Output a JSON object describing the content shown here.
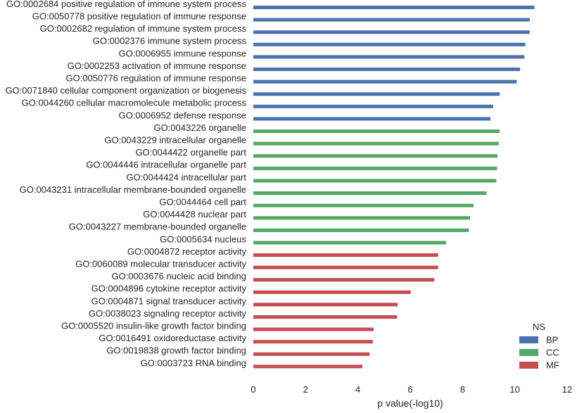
{
  "chart_data": {
    "type": "bar",
    "orientation": "horizontal",
    "title": "",
    "xlabel": "p value(-log10)",
    "ylabel": "",
    "xlim": [
      0,
      12
    ],
    "xticks": [
      0,
      2,
      4,
      6,
      8,
      10,
      12
    ],
    "grid": false,
    "legend": {
      "title": "NS",
      "placement": "bottom-right",
      "entries": [
        {
          "name": "BP",
          "color": "#4c72b0"
        },
        {
          "name": "CC",
          "color": "#55a868"
        },
        {
          "name": "MF",
          "color": "#c44e52"
        }
      ]
    },
    "bars": [
      {
        "label": "GO:0002684 positive regulation of immune system process",
        "value": 10.75,
        "group": "BP"
      },
      {
        "label": "GO:0050778 positive regulation of immune response",
        "value": 10.57,
        "group": "BP"
      },
      {
        "label": "GO:0002682 regulation of immune system process",
        "value": 10.57,
        "group": "BP"
      },
      {
        "label": "GO:0002376 immune system process",
        "value": 10.4,
        "group": "BP"
      },
      {
        "label": "GO:0006955 immune response",
        "value": 10.37,
        "group": "BP"
      },
      {
        "label": "GO:0002253 activation of immune response",
        "value": 10.2,
        "group": "BP"
      },
      {
        "label": "GO:0050776 regulation of immune response",
        "value": 10.07,
        "group": "BP"
      },
      {
        "label": "GO:0071840 cellular component organization or biogenesis",
        "value": 9.42,
        "group": "BP"
      },
      {
        "label": "GO:0044260 cellular macromolecule metabolic process",
        "value": 9.17,
        "group": "BP"
      },
      {
        "label": "GO:0006952 defense response",
        "value": 9.07,
        "group": "BP"
      },
      {
        "label": "GO:0043226 organelle",
        "value": 9.42,
        "group": "CC"
      },
      {
        "label": "GO:0043229 intracellular organelle",
        "value": 9.39,
        "group": "CC"
      },
      {
        "label": "GO:0044422 organelle part",
        "value": 9.34,
        "group": "CC"
      },
      {
        "label": "GO:0044446 intracellular organelle part",
        "value": 9.32,
        "group": "CC"
      },
      {
        "label": "GO:0044424 intracellular part",
        "value": 9.29,
        "group": "CC"
      },
      {
        "label": "GO:0043231 intracellular membrane-bounded organelle",
        "value": 8.92,
        "group": "CC"
      },
      {
        "label": "GO:0044464 cell part",
        "value": 8.42,
        "group": "CC"
      },
      {
        "label": "GO:0044428 nuclear part",
        "value": 8.29,
        "group": "CC"
      },
      {
        "label": "GO:0043227 membrane-bounded organelle",
        "value": 8.24,
        "group": "CC"
      },
      {
        "label": "GO:0005634 nucleus",
        "value": 7.37,
        "group": "CC"
      },
      {
        "label": "GO:0004872 receptor activity",
        "value": 7.07,
        "group": "MF"
      },
      {
        "label": "GO:0060089 molecular transducer activity",
        "value": 7.07,
        "group": "MF"
      },
      {
        "label": "GO:0003676 nucleic acid binding",
        "value": 6.92,
        "group": "MF"
      },
      {
        "label": "GO:0004896 cytokine receptor activity",
        "value": 6.02,
        "group": "MF"
      },
      {
        "label": "GO:0004871 signal transducer activity",
        "value": 5.52,
        "group": "MF"
      },
      {
        "label": "GO:0038023 signaling receptor activity",
        "value": 5.5,
        "group": "MF"
      },
      {
        "label": "GO:0005520 insulin-like growth factor binding",
        "value": 4.6,
        "group": "MF"
      },
      {
        "label": "GO:0016491 oxidoreductase activity",
        "value": 4.57,
        "group": "MF"
      },
      {
        "label": "GO:0019838 growth factor binding",
        "value": 4.45,
        "group": "MF"
      },
      {
        "label": "GO:0003723 RNA binding",
        "value": 4.17,
        "group": "MF"
      }
    ]
  }
}
